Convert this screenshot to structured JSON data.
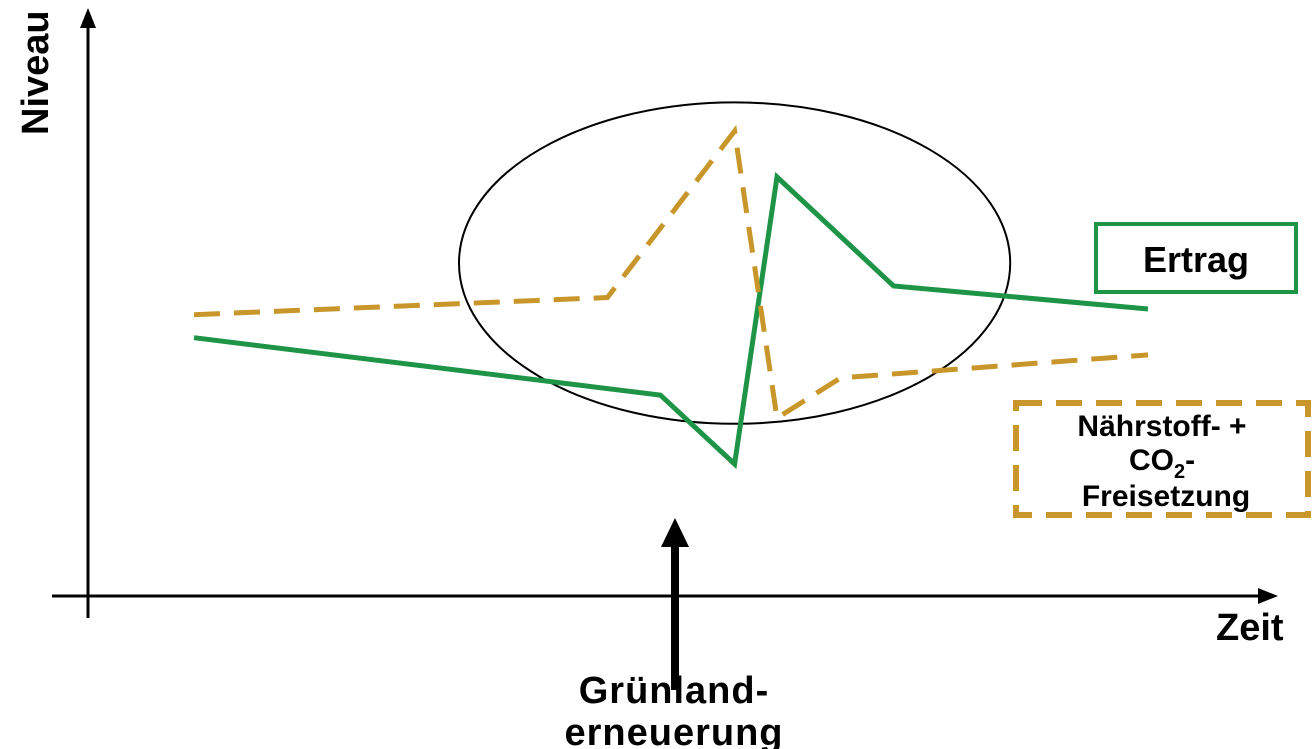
{
  "chart_data": {
    "type": "line",
    "xlabel": "Zeit",
    "ylabel": "Niveau",
    "grid": false,
    "legend_position": "right",
    "series": [
      {
        "name": "Ertrag",
        "style": "solid",
        "color": "#1e9446",
        "points": [
          [
            0.1,
            0.45
          ],
          [
            0.54,
            0.35
          ],
          [
            0.61,
            0.23
          ],
          [
            0.65,
            0.73
          ],
          [
            0.76,
            0.54
          ],
          [
            1.0,
            0.5
          ]
        ]
      },
      {
        "name": "Nährstoff- + CO2-Freisetzung",
        "legend_lines": [
          "Nährstoff- +",
          "CO",
          "2",
          "-",
          "Freisetzung"
        ],
        "style": "dashed",
        "color": "#c8962a",
        "points": [
          [
            0.1,
            0.49
          ],
          [
            0.49,
            0.52
          ],
          [
            0.61,
            0.81
          ],
          [
            0.65,
            0.31
          ],
          [
            0.71,
            0.38
          ],
          [
            1.0,
            0.42
          ]
        ]
      }
    ],
    "annotations": [
      {
        "type": "ellipse",
        "label": "",
        "center_x": 0.61,
        "center_y": 0.58,
        "rx": 0.26,
        "ry": 0.28
      },
      {
        "type": "arrow",
        "label_lines": [
          "Grünland-",
          "erneuerung"
        ],
        "x": 0.61
      }
    ]
  }
}
